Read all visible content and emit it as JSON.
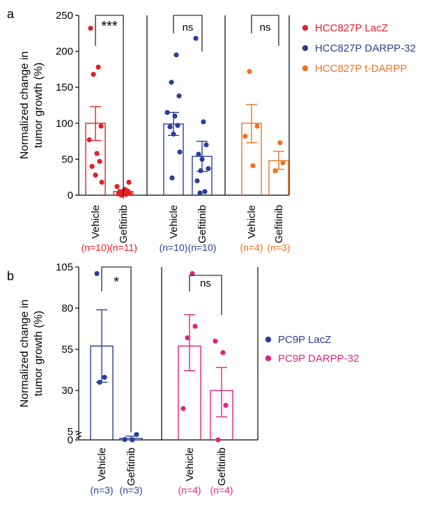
{
  "chart_data": [
    {
      "panel_label": "a",
      "type": "bar",
      "ylabel": "Normalized change in tumor growth (%)",
      "ylim": [
        0,
        250
      ],
      "yticks": [
        0,
        50,
        100,
        150,
        200,
        250
      ],
      "error_bars": "mean ± SEM",
      "groups": [
        {
          "name": "HCC827P LacZ",
          "color": "#e11f26",
          "significance": "***",
          "bars": [
            {
              "category": "Vehicle",
              "n_label": "(n=10)",
              "mean": 100,
              "err_low": 76,
              "err_high": 123,
              "points": [
                232,
                178,
                168,
                96,
                77,
                58,
                47,
                40,
                28,
                18
              ]
            },
            {
              "category": "Gefitinib",
              "n_label": "(n=11)",
              "mean": 5,
              "err_low": 3,
              "err_high": 7,
              "points": [
                18,
                12,
                8,
                6,
                5,
                4,
                3,
                2,
                2,
                1,
                0
              ]
            }
          ]
        },
        {
          "name": "HCC827P DARPP-32",
          "color": "#2a3f98",
          "significance": "ns",
          "bars": [
            {
              "category": "Vehicle",
              "n_label": "(n=10)",
              "mean": 99,
              "err_low": 83,
              "err_high": 115,
              "points": [
                195,
                157,
                138,
                115,
                110,
                97,
                95,
                85,
                60,
                24
              ]
            },
            {
              "category": "Gefitinib",
              "n_label": "(n=10)",
              "mean": 54,
              "err_low": 33,
              "err_high": 75,
              "points": [
                218,
                102,
                70,
                57,
                50,
                37,
                34,
                20,
                5,
                3
              ]
            }
          ]
        },
        {
          "name": "HCC827P t-DARPP",
          "color": "#f07024",
          "significance": "ns",
          "bars": [
            {
              "category": "Vehicle",
              "n_label": "(n=4)",
              "mean": 100,
              "err_low": 73,
              "err_high": 126,
              "points": [
                172,
                96,
                82,
                41
              ]
            },
            {
              "category": "Gefitinib",
              "n_label": "(n=3)",
              "mean": 48,
              "err_low": 36,
              "err_high": 61,
              "points": [
                73,
                45,
                34
              ]
            }
          ]
        }
      ]
    },
    {
      "panel_label": "b",
      "type": "bar",
      "ylabel": "Normalized change in tumor growth (%)",
      "ylim": [
        0,
        105
      ],
      "yticks": [
        0,
        5,
        30,
        55,
        80,
        105
      ],
      "axis_break": true,
      "error_bars": "mean ± SEM",
      "groups": [
        {
          "name": "PC9P LacZ",
          "color": "#2a3f98",
          "significance": "*",
          "bars": [
            {
              "category": "Vehicle",
              "n_label": "(n=3)",
              "mean": 57,
              "err_low": 35,
              "err_high": 79,
              "points": [
                101,
                38,
                35
              ]
            },
            {
              "category": "Gefitinib",
              "n_label": "(n=3)",
              "mean": 1,
              "err_low": 0,
              "err_high": 2.3,
              "points": [
                3.3,
                0.2,
                0
              ]
            }
          ]
        },
        {
          "name": "PC9P DARPP-32",
          "color": "#e0237e",
          "significance": "ns",
          "bars": [
            {
              "category": "Vehicle",
              "n_label": "(n=4)",
              "mean": 57,
              "err_low": 42,
              "err_high": 76,
              "points": [
                101,
                62,
                69,
                19
              ]
            },
            {
              "category": "Gefitinib",
              "n_label": "(n=4)",
              "mean": 30,
              "err_low": 14,
              "err_high": 44,
              "points": [
                60,
                53,
                21,
                0
              ]
            }
          ]
        }
      ]
    }
  ]
}
